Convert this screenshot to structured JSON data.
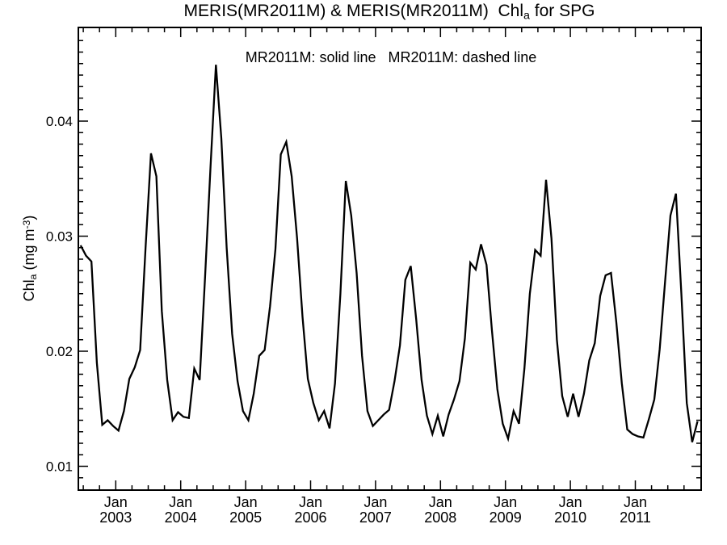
{
  "title": {
    "prefix": "MERIS(MR2011M) & MERIS(MR2011M)  Chl",
    "chl_sub": "a",
    "suffix": " for SPG"
  },
  "legend": {
    "text": "MR2011M: solid line   MR2011M: dashed line"
  },
  "y_axis": {
    "label_pre": "Chl",
    "label_sub": "a",
    "label_mid": " (mg m",
    "label_sup": "-3",
    "label_post": ")",
    "ticks": [
      "0.01",
      "0.02",
      "0.03",
      "0.04"
    ],
    "tick_values": [
      0.01,
      0.02,
      0.03,
      0.04
    ],
    "minor_tick_interval": 0.001,
    "range": [
      0.008,
      0.048
    ]
  },
  "x_axis": {
    "month_label": "Jan",
    "years": [
      "2003",
      "2004",
      "2005",
      "2006",
      "2007",
      "2008",
      "2009",
      "2010",
      "2011"
    ],
    "minor_ticks_per_year": 4,
    "range": [
      "Jun 2002",
      "Dec 2011"
    ]
  },
  "chart_data": {
    "type": "line",
    "title": "MERIS(MR2011M) & MERIS(MR2011M) Chl_a for SPG",
    "xlabel": "",
    "ylabel": "Chl_a (mg m-3)",
    "ylim": [
      0.008,
      0.048
    ],
    "y_ticks": [
      0.01,
      0.02,
      0.03,
      0.04
    ],
    "x_tick_labels": [
      "Jan 2003",
      "Jan 2004",
      "Jan 2005",
      "Jan 2006",
      "Jan 2007",
      "Jan 2008",
      "Jan 2009",
      "Jan 2010",
      "Jan 2011"
    ],
    "grid": false,
    "legend_position": "top-center-inside",
    "cadence": "monthly",
    "start_year": 2002,
    "start_month_index": 6,
    "series": [
      {
        "name": "MR2011M (solid line)",
        "style": "solid",
        "color": "#000000",
        "values": [
          0.0292,
          0.0283,
          0.0278,
          0.019,
          0.0136,
          0.014,
          0.0135,
          0.0131,
          0.0148,
          0.0176,
          0.0186,
          0.0201,
          0.029,
          0.0372,
          0.0352,
          0.0235,
          0.0175,
          0.014,
          0.0147,
          0.0143,
          0.0142,
          0.0185,
          0.0175,
          0.0265,
          0.036,
          0.0449,
          0.0385,
          0.029,
          0.0215,
          0.0174,
          0.0148,
          0.014,
          0.0163,
          0.0196,
          0.0201,
          0.0239,
          0.0289,
          0.0371,
          0.0382,
          0.0352,
          0.0298,
          0.023,
          0.0176,
          0.0155,
          0.014,
          0.0148,
          0.0133,
          0.0172,
          0.025,
          0.0348,
          0.0318,
          0.0268,
          0.0196,
          0.0148,
          0.0135,
          0.014,
          0.0145,
          0.0149,
          0.0174,
          0.0205,
          0.0262,
          0.0274,
          0.0228,
          0.0175,
          0.0144,
          0.0128,
          0.0144,
          0.0126,
          0.0145,
          0.0158,
          0.0174,
          0.0211,
          0.0277,
          0.0271,
          0.0293,
          0.0275,
          0.0218,
          0.0167,
          0.0137,
          0.0124,
          0.0148,
          0.0137,
          0.0185,
          0.025,
          0.0288,
          0.0283,
          0.0349,
          0.0298,
          0.021,
          0.0161,
          0.0143,
          0.0163,
          0.0143,
          0.0163,
          0.0192,
          0.0207,
          0.0248,
          0.0266,
          0.0268,
          0.0225,
          0.0172,
          0.0132,
          0.0128,
          0.0126,
          0.0125,
          0.0141,
          0.0158,
          0.0202,
          0.0261,
          0.0318,
          0.0337,
          0.025,
          0.0155,
          0.0121,
          0.0139
        ]
      },
      {
        "name": "MR2011M (dashed line)",
        "style": "dashed",
        "color": "#000000",
        "note": "identical series, overplotted and hidden beneath the solid line"
      }
    ]
  }
}
